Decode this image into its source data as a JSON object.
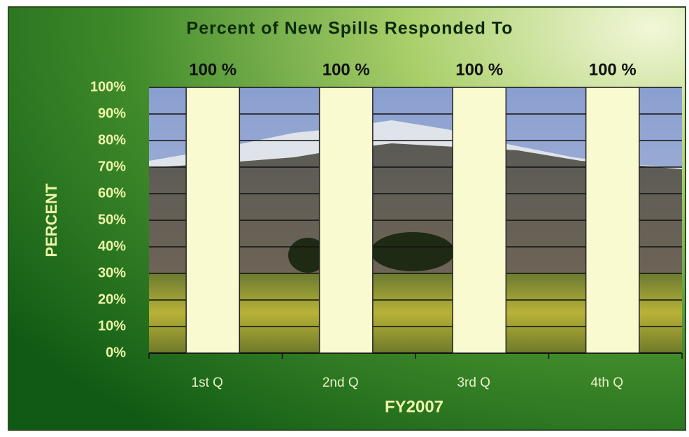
{
  "chart_data": {
    "type": "bar",
    "title": "Percent of New Spills Responded To",
    "categories": [
      "1st Q",
      "2nd Q",
      "3rd Q",
      "4th Q"
    ],
    "values": [
      100,
      100,
      100,
      100
    ],
    "value_labels": [
      "100 %",
      "100 %",
      "100 %",
      "100 %"
    ],
    "color": "#fafad0",
    "xlabel": "FY2007",
    "ylabel": "PERCENT",
    "ylim": [
      0,
      100
    ],
    "yticks": [
      {
        "value": 0,
        "label": "0%"
      },
      {
        "value": 10,
        "label": "10%"
      },
      {
        "value": 20,
        "label": "20%"
      },
      {
        "value": 30,
        "label": "30%"
      },
      {
        "value": 40,
        "label": "40%"
      },
      {
        "value": 50,
        "label": "50%"
      },
      {
        "value": 60,
        "label": "60%"
      },
      {
        "value": 70,
        "label": "70%"
      },
      {
        "value": 80,
        "label": "80%"
      },
      {
        "value": 90,
        "label": "90%"
      },
      {
        "value": 100,
        "label": "100%"
      }
    ],
    "grid": true
  }
}
